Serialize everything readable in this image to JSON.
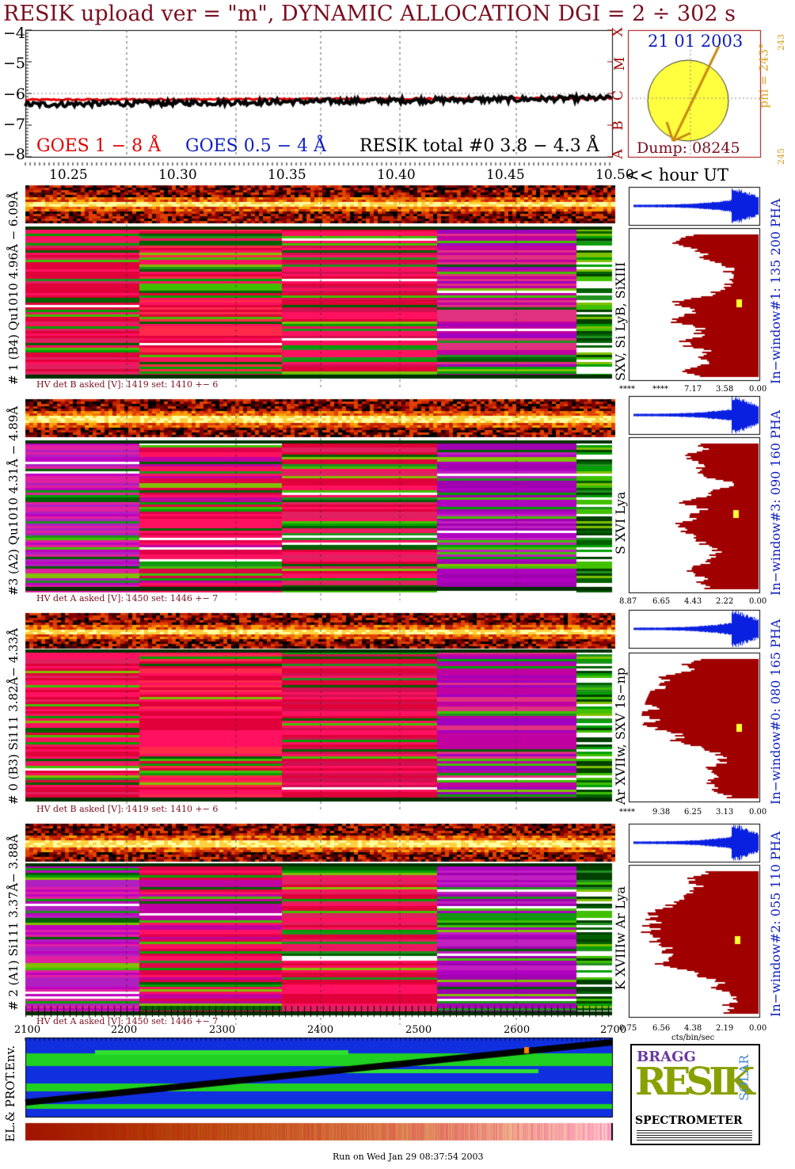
{
  "title": "RESIK upload ver = \"m\", DYNAMIC ALLOCATION  DGI =   2 ÷ 302 s",
  "colors": {
    "title": "#7a0f1f",
    "red": "#e00000",
    "blue": "#1020c0",
    "gold": "#d8a020",
    "dark_red": "#a00000",
    "pha_blue": "#0a20e0",
    "sun": "#ffff40"
  },
  "goes": {
    "y_ticks": [
      "−4",
      "−5",
      "−6",
      "−7",
      "−8"
    ],
    "class_letters": [
      "X",
      "M",
      "C",
      "B",
      "A"
    ],
    "legend_red": "GOES 1 − 8 Å",
    "legend_blue": "GOES 0.5 − 4 Å",
    "legend_black": "RESIK total #0  3.8 − 4.3 Å",
    "series_red": {
      "name": "GOES 1 − 8 Å",
      "y_start": -6.2,
      "y_end": -6.15
    },
    "series_black": {
      "name": "RESIK total #0  3.8 − 4.3 Å",
      "y_start": -6.35,
      "y_end": -6.15
    }
  },
  "sun": {
    "date": "21 01 2003",
    "dump": "Dump: 08245",
    "phi": "phi = 243°",
    "phi_small": "243",
    "side_small": "245"
  },
  "time_axis": {
    "ticks": [
      "10.25",
      "10.30",
      "10.35",
      "10.40",
      "10.45",
      "10.50"
    ],
    "unit": "<< hour UT",
    "values": [
      10.25,
      10.3,
      10.35,
      10.4,
      10.45,
      10.5
    ]
  },
  "channels": [
    {
      "left_label": "# 1 (B4) Qu1010 4.96Å − 6.09Å",
      "line_label": "SXV, Si LyB, SiXIII",
      "window_label": "In−window#1:  135 200 PHA",
      "hv_text": "HV det B asked [V]:  1419 set:  1410  +−    6",
      "axis": [
        "****",
        "****",
        "7.17",
        "3.58",
        "0.00"
      ]
    },
    {
      "left_label": "#3 (A2) Qu1010  4.31Å − 4.89Å",
      "line_label": "S XVI Lya",
      "window_label": "In−window#3:  090 160 PHA",
      "hv_text": "HV det A asked [V]:  1450 set:  1446  +−    7",
      "axis": [
        "8.87",
        "6.65",
        "4.43",
        "2.22",
        "0.00"
      ]
    },
    {
      "left_label": "# 0 (B3) Si111  3.82Å− 4.33Å",
      "line_label": "Ar XVIIw,  SXV 1s−np",
      "window_label": "In−window#0:  080 165 PHA",
      "hv_text": "HV det B asked [V]:  1419 set:  1410  +−    6",
      "axis": [
        "****",
        "9.38",
        "6.25",
        "3.13",
        "0.00"
      ]
    },
    {
      "left_label": "# 2 (A1) Si111  3.37Å− 3.88Å",
      "line_label": "K XVIIIw  Ar Lya",
      "window_label": "In−window#2:  055 110 PHA",
      "hv_text": "HV det A asked [V]:  1450 set:  1446  +−    7",
      "axis": [
        "0.75",
        "6.56",
        "4.38",
        "2.19",
        "0.00"
      ]
    }
  ],
  "axis_unit": "cts/bin/sec",
  "env": {
    "ticks": [
      "2100",
      "2200",
      "2300",
      "2400",
      "2500",
      "2600",
      "2700"
    ],
    "label": "EL.& PROT.Env."
  },
  "logo": {
    "resik": "RESIK",
    "bragg": "BRAGG",
    "solar": "SOLAR",
    "spectrometer": "SPECTROMETER"
  },
  "footer": "Run on Wed Jan 29 08:37:54 2003"
}
